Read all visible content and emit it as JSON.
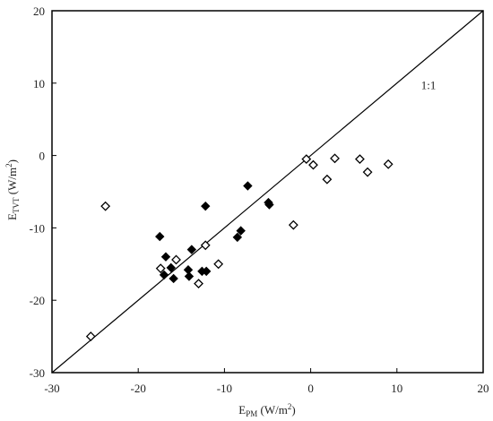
{
  "chart_data": {
    "type": "scatter",
    "xlim": [
      -30,
      20
    ],
    "ylim": [
      -30,
      20
    ],
    "x_ticks": [
      -30,
      -20,
      -10,
      0,
      10,
      20
    ],
    "y_ticks": [
      -30,
      -20,
      -10,
      0,
      10,
      20
    ],
    "x_tick_labels": [
      "-30",
      "-20",
      "-10",
      "0",
      "10",
      "20"
    ],
    "y_tick_labels": [
      "-30",
      "-20",
      "-10",
      "0",
      "10",
      "20"
    ],
    "xlabel": {
      "main": "E",
      "sub": "PM",
      "rest": " (W/m",
      "sup": "2",
      "end": ")"
    },
    "ylabel": {
      "main": "E",
      "sub": "TVT",
      "rest": " (W/m",
      "sup": "2",
      "end": ")"
    },
    "grid": false,
    "legend": "none",
    "annotations": [
      {
        "text": "1:1",
        "x": 12.8,
        "y": 9.2
      }
    ],
    "reference_line": {
      "from": [
        -30,
        -30
      ],
      "to": [
        20,
        20
      ]
    },
    "series": [
      {
        "marker": "filled-diamond",
        "color": "#000000",
        "points": [
          [
            -17.5,
            -11.2
          ],
          [
            -16.8,
            -14
          ],
          [
            -16.2,
            -15.5
          ],
          [
            -15.9,
            -17
          ],
          [
            -17,
            -16.5
          ],
          [
            -14.2,
            -15.8
          ],
          [
            -14.1,
            -16.7
          ],
          [
            -13.8,
            -13
          ],
          [
            -12.6,
            -16
          ],
          [
            -12.1,
            -16
          ],
          [
            -12.2,
            -7
          ],
          [
            -8.5,
            -11.3
          ],
          [
            -8.1,
            -10.4
          ],
          [
            -7.3,
            -4.2
          ],
          [
            -4.9,
            -6.5
          ],
          [
            -4.8,
            -6.8
          ]
        ]
      },
      {
        "marker": "open-diamond",
        "color": "#000000",
        "points": [
          [
            -25.5,
            -25
          ],
          [
            -23.8,
            -7
          ],
          [
            -17.4,
            -15.6
          ],
          [
            -15.6,
            -14.4
          ],
          [
            -12.2,
            -12.4
          ],
          [
            -13,
            -17.7
          ],
          [
            -10.7,
            -15
          ],
          [
            -2,
            -9.6
          ],
          [
            -0.5,
            -0.5
          ],
          [
            0.3,
            -1.3
          ],
          [
            1.9,
            -3.3
          ],
          [
            2.8,
            -0.4
          ],
          [
            5.7,
            -0.5
          ],
          [
            6.6,
            -2.3
          ],
          [
            9.0,
            -1.2
          ]
        ]
      }
    ]
  }
}
